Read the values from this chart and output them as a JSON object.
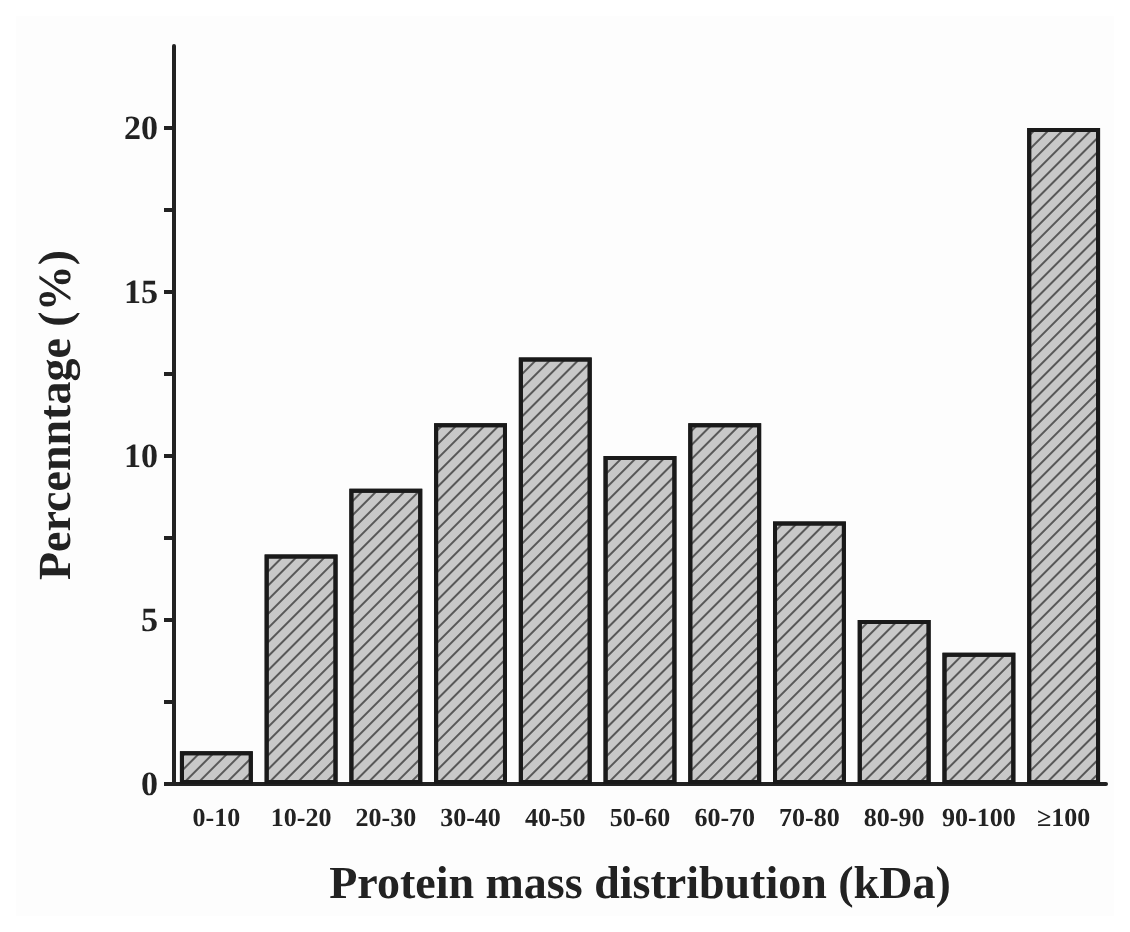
{
  "chart_data": {
    "type": "bar",
    "xlabel": "Protein mass distribution (kDa)",
    "ylabel": "Percenntage (%)",
    "categories": [
      "0-10",
      "10-20",
      "20-30",
      "30-40",
      "40-50",
      "50-60",
      "60-70",
      "70-80",
      "80-90",
      "90-100",
      "≥100"
    ],
    "values": [
      1,
      7,
      9,
      11,
      13,
      10,
      11,
      8,
      5,
      4,
      20
    ],
    "color": "#c8c8c8",
    "ylim": [
      0,
      22.5
    ],
    "yticks": [
      0,
      {
        "value": 2.5,
        "label": null
      },
      5,
      {
        "value": 7.5,
        "label": null
      },
      10,
      {
        "value": 12.5,
        "label": null
      },
      15,
      {
        "value": 17.5,
        "label": null
      },
      20
    ],
    "grid": false
  }
}
